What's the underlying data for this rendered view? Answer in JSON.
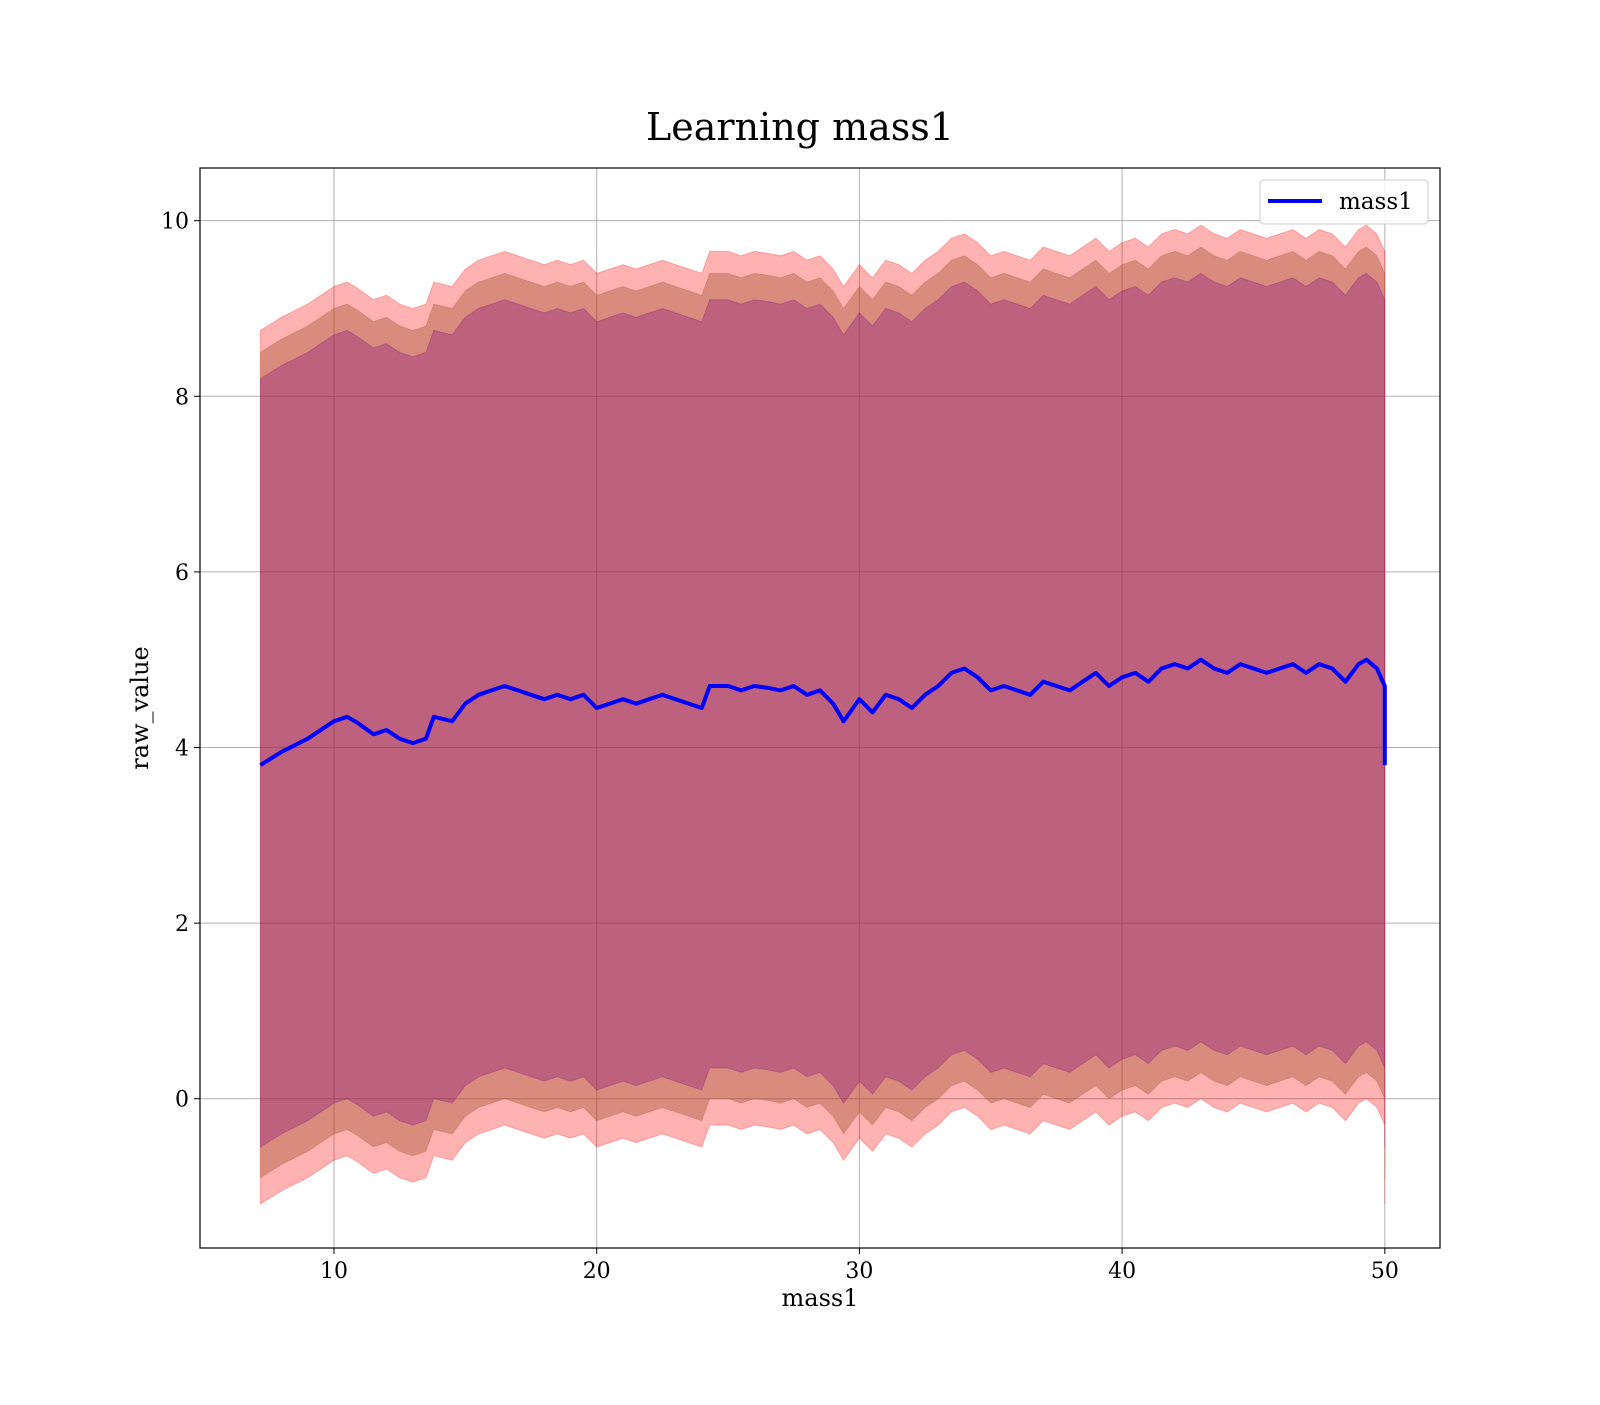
{
  "chart_data": {
    "type": "line",
    "title": "Learning mass1",
    "xlabel": "mass1",
    "ylabel": "raw_value",
    "xlim": [
      4.9,
      52.1
    ],
    "ylim": [
      -1.7,
      10.6
    ],
    "xticks": [
      10,
      20,
      30,
      40,
      50
    ],
    "yticks": [
      0,
      2,
      4,
      6,
      8,
      10
    ],
    "grid": true,
    "legend_position": "top-right",
    "series": [
      {
        "name": "mass1",
        "color": "#0000ff",
        "x": [
          7.2,
          8.0,
          9.0,
          10.0,
          10.5,
          10.9,
          11.5,
          12.0,
          12.5,
          13.0,
          13.5,
          13.8,
          14.5,
          15.0,
          15.5,
          16.0,
          16.5,
          17.0,
          17.5,
          18.0,
          18.5,
          19.0,
          19.5,
          20.0,
          20.5,
          21.0,
          21.5,
          22.0,
          22.5,
          23.0,
          23.5,
          24.0,
          24.3,
          25.0,
          25.5,
          26.0,
          26.5,
          27.0,
          27.5,
          28.0,
          28.5,
          29.0,
          29.4,
          30.0,
          30.5,
          31.0,
          31.5,
          32.0,
          32.5,
          33.0,
          33.5,
          34.0,
          34.5,
          35.0,
          35.5,
          36.0,
          36.5,
          37.0,
          37.5,
          38.0,
          38.5,
          39.0,
          39.5,
          40.0,
          40.5,
          41.0,
          41.5,
          42.0,
          42.5,
          43.0,
          43.5,
          44.0,
          44.5,
          45.0,
          45.5,
          46.0,
          46.5,
          47.0,
          47.5,
          48.0,
          48.5,
          49.0,
          49.3,
          49.7,
          50.0,
          50.0
        ],
        "y": [
          3.8,
          3.95,
          4.1,
          4.3,
          4.35,
          4.28,
          4.15,
          4.2,
          4.1,
          4.05,
          4.1,
          4.35,
          4.3,
          4.5,
          4.6,
          4.65,
          4.7,
          4.65,
          4.6,
          4.55,
          4.6,
          4.55,
          4.6,
          4.45,
          4.5,
          4.55,
          4.5,
          4.55,
          4.6,
          4.55,
          4.5,
          4.45,
          4.7,
          4.7,
          4.65,
          4.7,
          4.68,
          4.65,
          4.7,
          4.6,
          4.65,
          4.5,
          4.3,
          4.55,
          4.4,
          4.6,
          4.55,
          4.45,
          4.6,
          4.7,
          4.85,
          4.9,
          4.8,
          4.65,
          4.7,
          4.65,
          4.6,
          4.75,
          4.7,
          4.65,
          4.75,
          4.85,
          4.7,
          4.8,
          4.85,
          4.75,
          4.9,
          4.95,
          4.9,
          5.0,
          4.9,
          4.85,
          4.95,
          4.9,
          4.85,
          4.9,
          4.95,
          4.85,
          4.95,
          4.9,
          4.75,
          4.95,
          5.0,
          4.9,
          4.7,
          3.8
        ]
      }
    ],
    "bands": [
      {
        "color": "#ff0000",
        "opacity": 0.3,
        "lower_offset": -5.0,
        "upper_offset": 4.95
      },
      {
        "color": "#a0522d",
        "opacity": 0.4,
        "lower_offset": -4.7,
        "upper_offset": 4.7
      },
      {
        "color": "#800080",
        "opacity": 0.3,
        "lower_offset": -4.35,
        "upper_offset": 4.4
      }
    ]
  }
}
